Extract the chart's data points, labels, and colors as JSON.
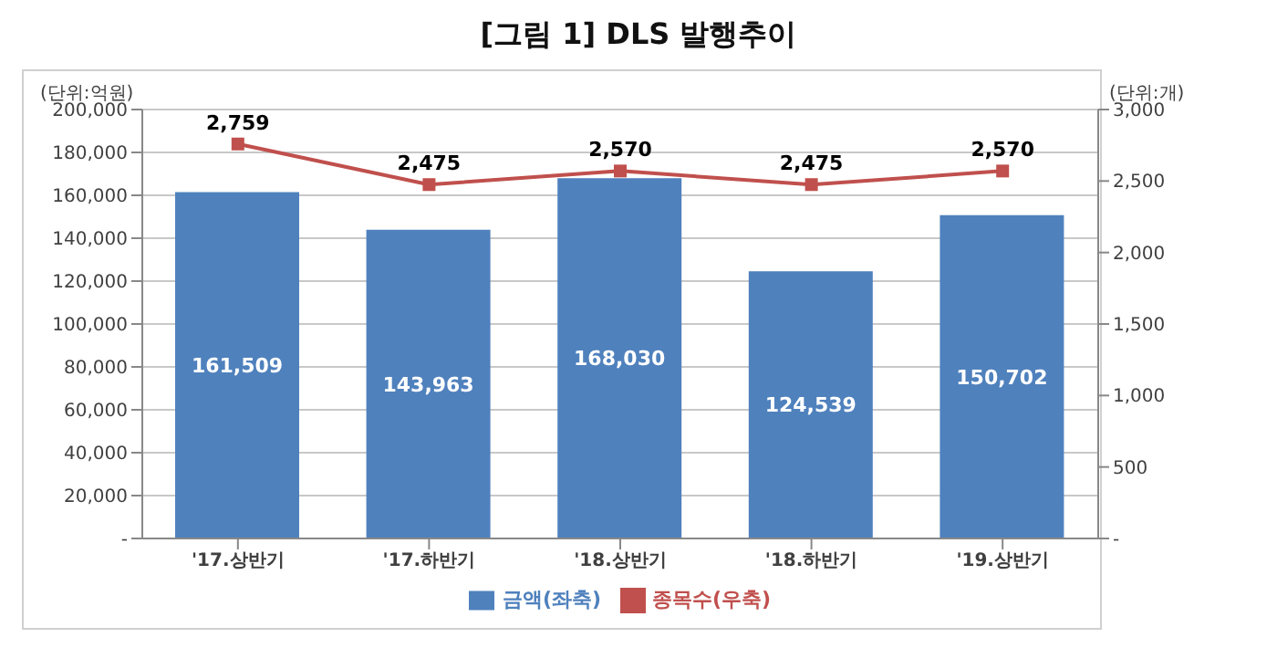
{
  "chart_data": {
    "type": "bar",
    "title": "[그림 1] DLS 발행추이",
    "ylabel": "(단위:억원)",
    "y2label": "(단위:개)",
    "categories": [
      "'17.상반기",
      "'17.하반기",
      "'18.상반기",
      "'18.하반기",
      "'19.상반기"
    ],
    "series": [
      {
        "name": "금액(좌축)",
        "color": "#4f81bd",
        "values": [
          161509,
          143963,
          168030,
          124539,
          150702
        ],
        "value_labels": [
          "161,509",
          "143,963",
          "168,030",
          "124,539",
          "150,702"
        ]
      },
      {
        "name": "종목수(우축)",
        "type": "line",
        "axis": "y2",
        "color": "#c0504d",
        "marker": "square",
        "values": [
          2759,
          2475,
          2570,
          2475,
          2570
        ],
        "value_labels": [
          "2,759",
          "2,475",
          "2,570",
          "2,475",
          "2,570"
        ]
      }
    ],
    "ylim": [
      0,
      200000
    ],
    "yticks": [
      {
        "value": 0,
        "label": "-"
      },
      {
        "value": 20000,
        "label": "20,000"
      },
      {
        "value": 40000,
        "label": "40,000"
      },
      {
        "value": 60000,
        "label": "60,000"
      },
      {
        "value": 80000,
        "label": "80,000"
      },
      {
        "value": 100000,
        "label": "100,000"
      },
      {
        "value": 120000,
        "label": "120,000"
      },
      {
        "value": 140000,
        "label": "140,000"
      },
      {
        "value": 160000,
        "label": "160,000"
      },
      {
        "value": 180000,
        "label": "180,000"
      },
      {
        "value": 200000,
        "label": "200,000"
      }
    ],
    "y2lim": [
      0,
      3000
    ],
    "y2ticks": [
      {
        "value": 0,
        "label": "-"
      },
      {
        "value": 500,
        "label": "500"
      },
      {
        "value": 1000,
        "label": "1,000"
      },
      {
        "value": 1500,
        "label": "1,500"
      },
      {
        "value": 2000,
        "label": "2,000"
      },
      {
        "value": 2500,
        "label": "2,500"
      },
      {
        "value": 3000,
        "label": "3,000"
      }
    ],
    "grid": "y",
    "legend": "bottom"
  }
}
